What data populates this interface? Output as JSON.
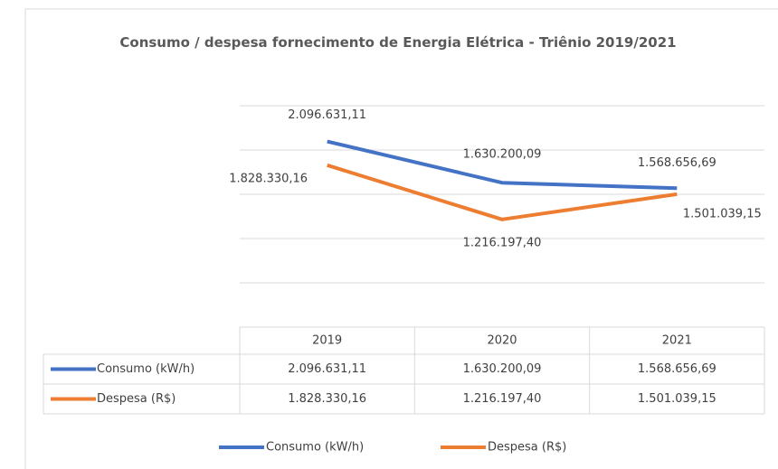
{
  "chart_data": {
    "type": "line",
    "title": "Consumo / despesa fornecimento de Energia Elétrica - Triênio 2019/2021",
    "categories": [
      "2019",
      "2020",
      "2021"
    ],
    "series": [
      {
        "name": "Consumo (kW/h)",
        "color": "#4472c4",
        "values": [
          2096631.11,
          1630200.09,
          1568656.69
        ],
        "value_labels": [
          "2.096.631,11",
          "1.630.200,09",
          "1.568.656,69"
        ]
      },
      {
        "name": "Despesa (R$)",
        "color": "#ed7d31",
        "values": [
          1828330.16,
          1216197.4,
          1501039.15
        ],
        "value_labels": [
          "1.828.330,16",
          "1.216.197,40",
          "1.501.039,15"
        ]
      }
    ],
    "ylim": [
      0,
      2500000
    ],
    "yticks": [
      0,
      500000,
      1000000,
      1500000,
      2000000,
      2500000
    ],
    "grid": true,
    "data_table": true,
    "legend": "bottom"
  }
}
